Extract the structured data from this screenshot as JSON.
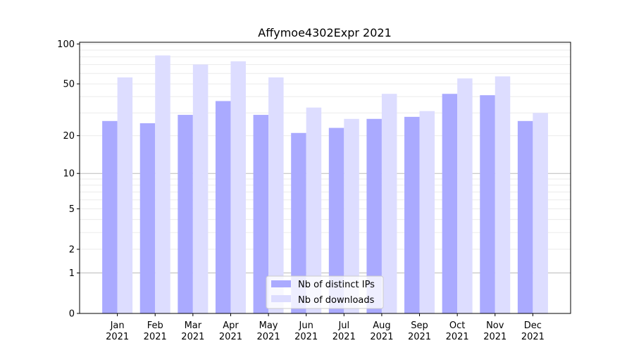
{
  "chart_data": {
    "type": "bar",
    "title": "Affymoe4302Expr 2021",
    "xlabel": "",
    "ylabel": "",
    "yscale": "log(1+x)",
    "ylim": [
      0,
      103
    ],
    "yticks": [
      0,
      1,
      2,
      5,
      10,
      20,
      50,
      100
    ],
    "ytick_labels": [
      "0",
      "1",
      "2",
      "5",
      "10",
      "20",
      "50",
      "100"
    ],
    "grid": true,
    "legend_position": "lower center",
    "categories": [
      [
        "Jan",
        "2021"
      ],
      [
        "Feb",
        "2021"
      ],
      [
        "Mar",
        "2021"
      ],
      [
        "Apr",
        "2021"
      ],
      [
        "May",
        "2021"
      ],
      [
        "Jun",
        "2021"
      ],
      [
        "Jul",
        "2021"
      ],
      [
        "Aug",
        "2021"
      ],
      [
        "Sep",
        "2021"
      ],
      [
        "Oct",
        "2021"
      ],
      [
        "Nov",
        "2021"
      ],
      [
        "Dec",
        "2021"
      ]
    ],
    "series": [
      {
        "name": "Nb of distinct IPs",
        "color": "#aaaaff",
        "values": [
          26,
          25,
          29,
          37,
          29,
          21,
          23,
          27,
          28,
          42,
          41,
          26
        ]
      },
      {
        "name": "Nb of downloads",
        "color": "#ddddff",
        "values": [
          56,
          82,
          70,
          74,
          56,
          33,
          27,
          42,
          31,
          55,
          57,
          30
        ]
      }
    ]
  }
}
